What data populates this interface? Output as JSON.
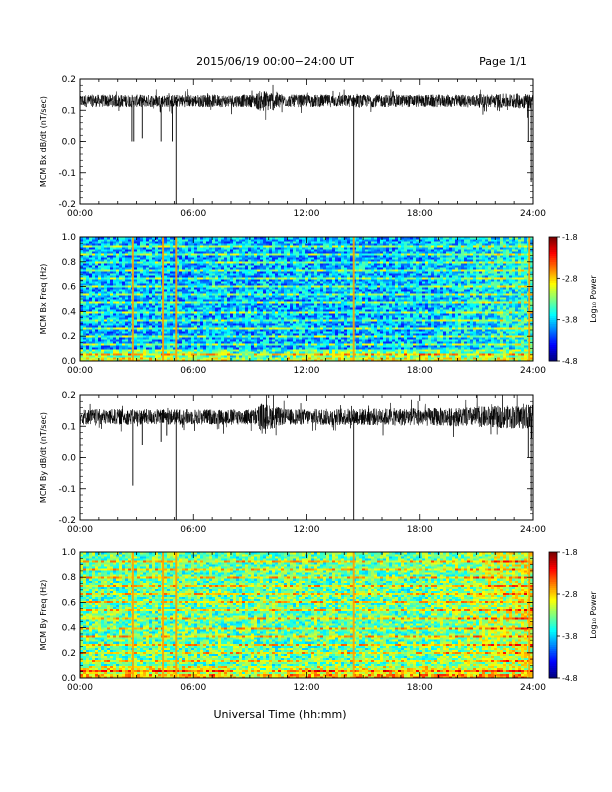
{
  "header": {
    "title": "2015/06/19  00:00−24:00 UT",
    "page": "Page 1/1"
  },
  "footer": {
    "xlabel": "Universal Time (hh:mm)"
  },
  "colorbar": {
    "label": "Log₁₀ Power",
    "ticks": [
      "-1.8",
      "-2.8",
      "-3.8",
      "-4.8"
    ],
    "range": [
      -4.8,
      -1.8
    ]
  },
  "chart_data": [
    {
      "type": "line",
      "ylabel": "MCM Bx dB/dt (nT/sec)",
      "xlim": [
        0,
        24
      ],
      "ylim": [
        -0.2,
        0.2
      ],
      "xticks": [
        "00:00",
        "06:00",
        "12:00",
        "18:00",
        "24:00"
      ],
      "yticks": [
        "0.2",
        "0.1",
        "0.0",
        "-0.1",
        "-0.2"
      ],
      "baseline": 0.13,
      "noise_profile": [
        [
          0,
          0.02
        ],
        [
          9.2,
          0.02
        ],
        [
          9.6,
          0.035
        ],
        [
          10.4,
          0.03
        ],
        [
          10.8,
          0.02
        ],
        [
          20,
          0.02
        ],
        [
          24,
          0.025
        ]
      ],
      "spikes": [
        {
          "x": 2.75,
          "y": 0.0
        },
        {
          "x": 2.85,
          "y": 0.0
        },
        {
          "x": 3.3,
          "y": 0.01
        },
        {
          "x": 4.3,
          "y": 0.0
        },
        {
          "x": 4.9,
          "y": 0.0
        },
        {
          "x": 5.1,
          "y": -0.2
        },
        {
          "x": 14.5,
          "y": -0.2
        },
        {
          "x": 23.75,
          "y": 0.0
        },
        {
          "x": 23.9,
          "y": -0.13
        }
      ]
    },
    {
      "type": "heatmap",
      "ylabel": "MCM Bx Freq (Hz)",
      "xlim": [
        0,
        24
      ],
      "ylim": [
        0,
        1.0
      ],
      "xticks": [
        "00:00",
        "06:00",
        "12:00",
        "18:00",
        "24:00"
      ],
      "yticks": [
        "1.0",
        "0.8",
        "0.6",
        "0.4",
        "0.2",
        "0.0"
      ],
      "base_level": -3.9,
      "low_freq_level": -3.3,
      "harmonic_lines_hz": [
        0.064,
        0.135,
        0.2,
        0.27,
        0.33,
        0.4,
        0.47,
        0.535,
        0.6,
        0.67,
        0.73,
        0.8,
        0.87,
        0.93
      ],
      "vertical_events_h": [
        2.8,
        4.4,
        5.1,
        14.5,
        23.8
      ],
      "late_enhancement": {
        "from_h": 18,
        "to_h": 24,
        "delta": 0.3
      }
    },
    {
      "type": "line",
      "ylabel": "MCM By dB/dt (nT/sec)",
      "xlim": [
        0,
        24
      ],
      "ylim": [
        -0.2,
        0.2
      ],
      "xticks": [
        "00:00",
        "06:00",
        "12:00",
        "18:00",
        "24:00"
      ],
      "yticks": [
        "0.2",
        "0.1",
        "0.0",
        "-0.1",
        "-0.2"
      ],
      "baseline": 0.13,
      "noise_profile": [
        [
          0,
          0.025
        ],
        [
          9.2,
          0.025
        ],
        [
          9.6,
          0.045
        ],
        [
          10.4,
          0.035
        ],
        [
          10.8,
          0.025
        ],
        [
          20,
          0.03
        ],
        [
          24,
          0.04
        ]
      ],
      "spikes": [
        {
          "x": 2.8,
          "y": -0.09
        },
        {
          "x": 3.3,
          "y": 0.04
        },
        {
          "x": 4.3,
          "y": 0.05
        },
        {
          "x": 4.6,
          "y": 0.07
        },
        {
          "x": 5.1,
          "y": -0.2
        },
        {
          "x": 14.5,
          "y": -0.2
        },
        {
          "x": 23.75,
          "y": 0.0
        },
        {
          "x": 23.9,
          "y": -0.17
        }
      ]
    },
    {
      "type": "heatmap",
      "ylabel": "MCM By Freq (Hz)",
      "xlim": [
        0,
        24
      ],
      "ylim": [
        0,
        1.0
      ],
      "xticks": [
        "00:00",
        "06:00",
        "12:00",
        "18:00",
        "24:00"
      ],
      "yticks": [
        "1.0",
        "0.8",
        "0.6",
        "0.4",
        "0.2",
        "0.0"
      ],
      "base_level": -3.4,
      "low_freq_level": -3.0,
      "harmonic_lines_hz": [
        0.064,
        0.135,
        0.2,
        0.27,
        0.33,
        0.4,
        0.47,
        0.535,
        0.6,
        0.67,
        0.73,
        0.8,
        0.87,
        0.93
      ],
      "vertical_events_h": [
        2.8,
        4.4,
        5.1,
        14.5,
        23.8
      ],
      "late_enhancement": {
        "from_h": 18,
        "to_h": 24,
        "delta": 0.35
      }
    }
  ]
}
